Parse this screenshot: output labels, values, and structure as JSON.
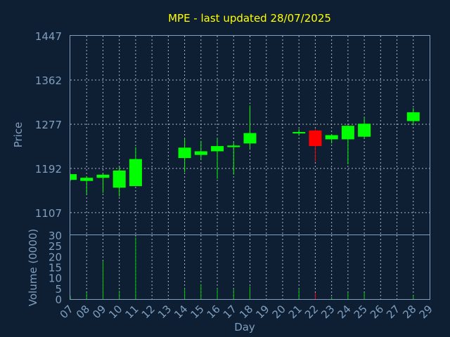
{
  "chart_data": {
    "type": "candlestick",
    "title": "MPE - last updated 28/07/2025",
    "xlabel": "Day",
    "ylabel": "Price",
    "volume_label": "Volume (0000)",
    "x_ticks": [
      "07",
      "08",
      "09",
      "10",
      "11",
      "12",
      "13",
      "14",
      "15",
      "16",
      "17",
      "18",
      "19",
      "20",
      "21",
      "22",
      "23",
      "24",
      "25",
      "26",
      "27",
      "28",
      "29"
    ],
    "price_ticks": [
      1107,
      1192,
      1277,
      1362,
      1447
    ],
    "volume_ticks": [
      0,
      5,
      10,
      15,
      20,
      25,
      30
    ],
    "price_range": [
      1065,
      1447
    ],
    "volume_range": [
      0,
      30
    ],
    "grid": true,
    "colors": {
      "up": "#00ff00",
      "down": "#ff0000",
      "title": "#ffff00",
      "axis": "#7f9fbf",
      "volume": "#00cc00"
    },
    "candles": [
      {
        "day": "07",
        "open": 1170,
        "high": 1182,
        "low": 1168,
        "close": 1181,
        "volume": 1.5
      },
      {
        "day": "08",
        "open": 1168,
        "high": 1177,
        "low": 1143,
        "close": 1174,
        "volume": 3
      },
      {
        "day": "09",
        "open": 1174,
        "high": 1182,
        "low": 1145,
        "close": 1180,
        "volume": 18
      },
      {
        "day": "10",
        "open": 1155,
        "high": 1195,
        "low": 1138,
        "close": 1188,
        "volume": 4
      },
      {
        "day": "11",
        "open": 1158,
        "high": 1233,
        "low": 1158,
        "close": 1210,
        "volume": 29
      },
      {
        "day": "14",
        "open": 1212,
        "high": 1250,
        "low": 1185,
        "close": 1232,
        "volume": 5
      },
      {
        "day": "15",
        "open": 1218,
        "high": 1245,
        "low": 1210,
        "close": 1225,
        "volume": 7
      },
      {
        "day": "16",
        "open": 1225,
        "high": 1250,
        "low": 1172,
        "close": 1235,
        "volume": 5
      },
      {
        "day": "17",
        "open": 1233,
        "high": 1242,
        "low": 1180,
        "close": 1236,
        "volume": 5
      },
      {
        "day": "18",
        "open": 1240,
        "high": 1313,
        "low": 1230,
        "close": 1260,
        "volume": 6
      },
      {
        "day": "21",
        "open": 1260,
        "high": 1268,
        "low": 1255,
        "close": 1262,
        "volume": 5
      },
      {
        "day": "22",
        "open": 1265,
        "high": 1268,
        "low": 1205,
        "close": 1235,
        "volume": 3
      },
      {
        "day": "23",
        "open": 1248,
        "high": 1258,
        "low": 1240,
        "close": 1256,
        "volume": 1
      },
      {
        "day": "24",
        "open": 1248,
        "high": 1275,
        "low": 1200,
        "close": 1274,
        "volume": 3
      },
      {
        "day": "25",
        "open": 1253,
        "high": 1290,
        "low": 1250,
        "close": 1278,
        "volume": 3
      },
      {
        "day": "28",
        "open": 1283,
        "high": 1308,
        "low": 1275,
        "close": 1300,
        "volume": 2
      }
    ]
  }
}
